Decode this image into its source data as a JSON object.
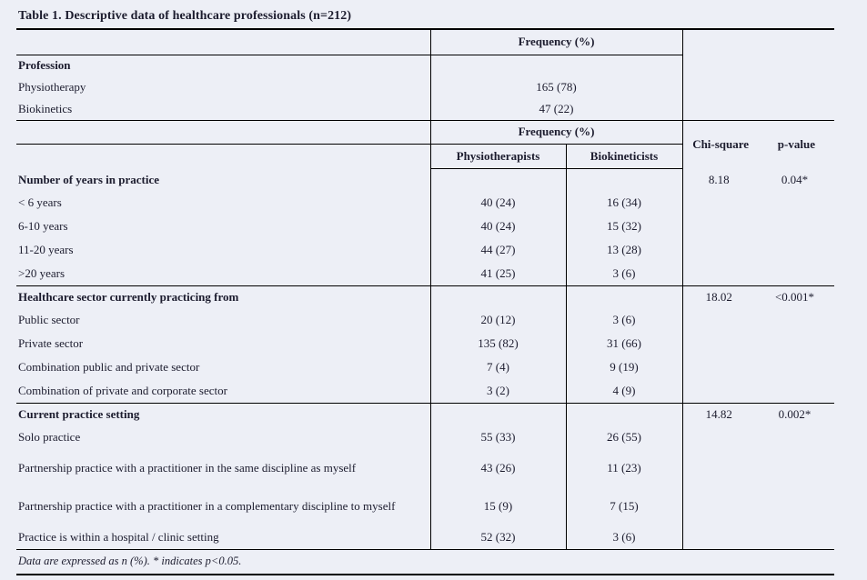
{
  "title": "Table 1. Descriptive data of healthcare professionals (n=212)",
  "footnote": "Data are expressed as n (%). * indicates p<0.05.",
  "colors": {
    "background": "#edeff6",
    "text": "#1c1c2e",
    "line": "#000000"
  },
  "headers": {
    "frequency": "Frequency (%)",
    "physiotherapists": "Physiotherapists",
    "biokineticists": "Biokineticists",
    "chi_square": "Chi-square",
    "p_value": "p-value"
  },
  "profession": {
    "header": "Profession",
    "rows": [
      {
        "label": "Physiotherapy",
        "value": "165 (78)"
      },
      {
        "label": "Biokinetics",
        "value": "47 (22)"
      }
    ]
  },
  "sections": [
    {
      "header": "Number of years in practice",
      "chi": "8.18",
      "p": "0.04*",
      "rows": [
        {
          "label": "< 6 years",
          "physio": "40 (24)",
          "biokin": "16 (34)"
        },
        {
          "label": "6-10 years",
          "physio": "40 (24)",
          "biokin": "15 (32)"
        },
        {
          "label": "11-20 years",
          "physio": "44 (27)",
          "biokin": "13 (28)"
        },
        {
          "label": ">20 years",
          "physio": "41 (25)",
          "biokin": "3 (6)"
        }
      ]
    },
    {
      "header": "Healthcare sector currently practicing from",
      "chi": "18.02",
      "p": "<0.001*",
      "rows": [
        {
          "label": "Public sector",
          "physio": "20 (12)",
          "biokin": "3 (6)"
        },
        {
          "label": "Private sector",
          "physio": "135 (82)",
          "biokin": "31 (66)"
        },
        {
          "label": "Combination public and private sector",
          "physio": "7 (4)",
          "biokin": "9 (19)"
        },
        {
          "label": "Combination of private and corporate sector",
          "physio": "3 (2)",
          "biokin": "4 (9)"
        }
      ]
    },
    {
      "header": "Current practice setting",
      "chi": "14.82",
      "p": "0.002*",
      "rows": [
        {
          "label": "Solo practice",
          "physio": "55 (33)",
          "biokin": "26 (55)"
        },
        {
          "label": "Partnership practice with a practitioner in the same discipline as myself",
          "physio": "43 (26)",
          "biokin": "11 (23)"
        },
        {
          "label": "Partnership practice with a practitioner in a complementary discipline to myself",
          "physio": "15 (9)",
          "biokin": "7 (15)"
        },
        {
          "label": "Practice is within a hospital / clinic setting",
          "physio": "52 (32)",
          "biokin": "3 (6)"
        }
      ]
    }
  ]
}
